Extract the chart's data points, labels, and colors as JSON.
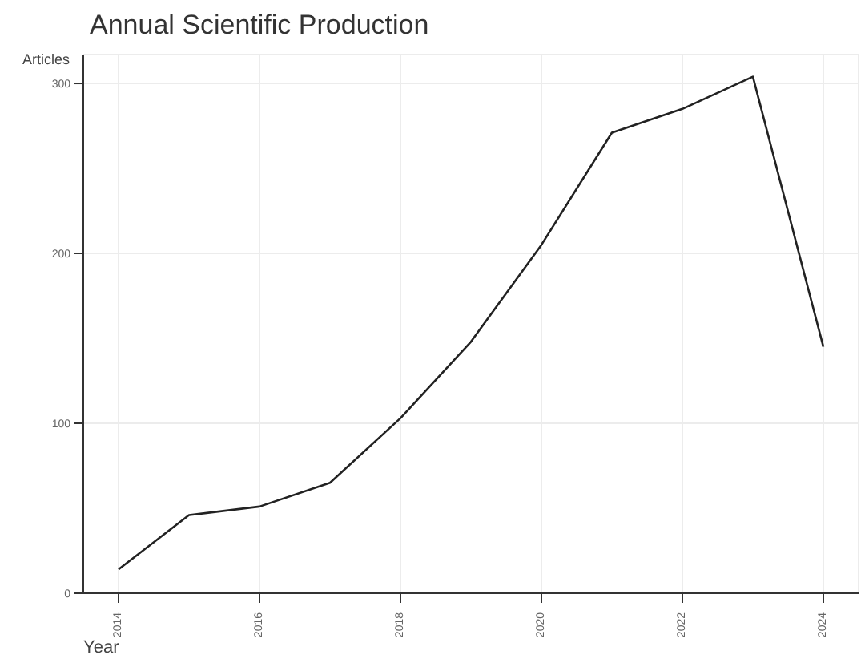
{
  "chart_data": {
    "type": "line",
    "title": "Annual Scientific Production",
    "xlabel": "Year",
    "ylabel": "Articles",
    "x": [
      2014,
      2015,
      2016,
      2017,
      2018,
      2019,
      2020,
      2021,
      2022,
      2023,
      2024
    ],
    "series": [
      {
        "color": "#222222",
        "values": [
          14,
          46,
          51,
          65,
          103,
          148,
          205,
          271,
          285,
          304,
          145
        ]
      }
    ],
    "xlim": [
      2013.5,
      2024.5
    ],
    "xticks": [
      2014,
      2016,
      2018,
      2020,
      2022,
      2024
    ],
    "ylim": [
      0,
      317
    ],
    "yticks": [
      0,
      100,
      200,
      300
    ],
    "grid": true,
    "marker": "none",
    "line_style": "solid"
  }
}
